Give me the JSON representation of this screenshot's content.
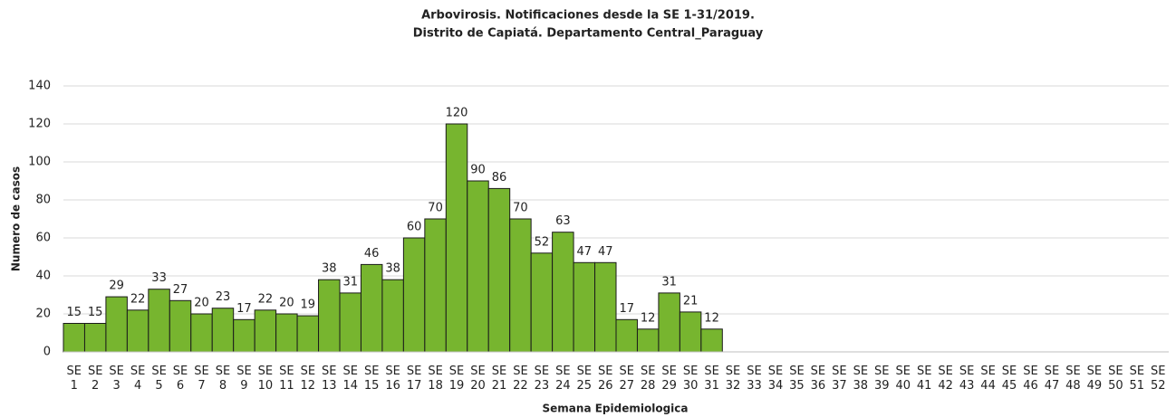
{
  "chart_data": {
    "type": "bar",
    "title": "Arbovirosis. Notificaciones desde la SE 1-31/2019.",
    "subtitle": "Distrito de Capiatá. Departamento Central_Paraguay",
    "x_label": "Semana Epidemiologica",
    "y_label": "Numero de casos",
    "categories": [
      "SE 1",
      "SE 2",
      "SE 3",
      "SE 4",
      "SE 5",
      "SE 6",
      "SE 7",
      "SE 8",
      "SE 9",
      "SE 10",
      "SE 11",
      "SE 12",
      "SE 13",
      "SE 14",
      "SE 15",
      "SE 16",
      "SE 17",
      "SE 18",
      "SE 19",
      "SE 20",
      "SE 21",
      "SE 22",
      "SE 23",
      "SE 24",
      "SE 25",
      "SE 26",
      "SE 27",
      "SE 28",
      "SE 29",
      "SE 30",
      "SE 31",
      "SE 32",
      "SE 33",
      "SE 34",
      "SE 35",
      "SE 36",
      "SE 37",
      "SE 38",
      "SE 39",
      "SE 40",
      "SE 41",
      "SE 42",
      "SE 43",
      "SE 44",
      "SE 45",
      "SE 46",
      "SE 47",
      "SE 48",
      "SE 49",
      "SE 50",
      "SE 51",
      "SE 52"
    ],
    "values": [
      15,
      15,
      29,
      22,
      33,
      27,
      20,
      23,
      17,
      22,
      20,
      19,
      38,
      31,
      46,
      38,
      60,
      70,
      120,
      90,
      86,
      70,
      52,
      63,
      47,
      47,
      17,
      12,
      31,
      21,
      12,
      null,
      null,
      null,
      null,
      null,
      null,
      null,
      null,
      null,
      null,
      null,
      null,
      null,
      null,
      null,
      null,
      null,
      null,
      null,
      null,
      null
    ],
    "color": "#77b52f",
    "ylim": [
      0,
      140
    ],
    "yticks": [
      0,
      20,
      40,
      60,
      80,
      100,
      120,
      140
    ],
    "grid": true
  }
}
